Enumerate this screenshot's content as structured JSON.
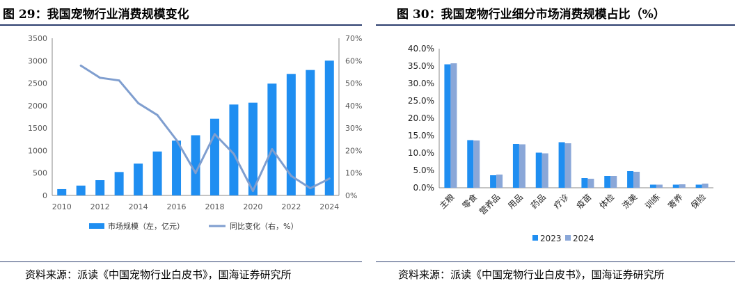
{
  "left": {
    "title": "图 29：我国宠物行业消费规模变化",
    "source": "资料来源：派读《中国宠物行业白皮书》，国海证券研究所",
    "chart_data": {
      "type": "bar",
      "title": "",
      "x": [
        2010,
        2011,
        2012,
        2013,
        2014,
        2015,
        2016,
        2017,
        2018,
        2019,
        2020,
        2021,
        2022,
        2023,
        2024
      ],
      "x_ticks": [
        "2010",
        "2012",
        "2014",
        "2016",
        "2018",
        "2020",
        "2022",
        "2024"
      ],
      "series": [
        {
          "name": "市场规模（左，亿元）",
          "type": "bar",
          "axis": "left",
          "color": "#1f8ef1",
          "values": [
            140,
            219,
            340,
            521,
            708,
            978,
            1220,
            1340,
            1708,
            2024,
            2065,
            2490,
            2706,
            2793,
            3002
          ]
        },
        {
          "name": "同比变化（右，%）",
          "type": "line",
          "axis": "right",
          "color": "#7f9ecf",
          "values": [
            null,
            57.8,
            52.4,
            51.2,
            41.1,
            35.8,
            24.7,
            10.0,
            27.3,
            18.5,
            2.0,
            20.6,
            8.7,
            3.2,
            7.5
          ]
        }
      ],
      "y_left": {
        "min": 0,
        "max": 3500,
        "ticks": [
          "0",
          "500",
          "1000",
          "1500",
          "2000",
          "2500",
          "3000",
          "3500"
        ]
      },
      "y_right": {
        "min": 0,
        "max": 70,
        "ticks": [
          "0%",
          "10%",
          "20%",
          "30%",
          "40%",
          "50%",
          "60%",
          "70%"
        ]
      },
      "legend_position": "bottom",
      "grid": false
    }
  },
  "right": {
    "title": "图 30：我国宠物行业细分市场消费规模占比（%）",
    "source": "资料来源：派读《中国宠物行业白皮书》，国海证券研究所",
    "chart_data": {
      "type": "bar",
      "title": "",
      "categories": [
        "主粮",
        "零食",
        "营养品",
        "用品",
        "药品",
        "疗诊",
        "疫苗",
        "体检",
        "洗美",
        "训练",
        "寄养",
        "保险"
      ],
      "series": [
        {
          "name": "2023",
          "color": "#1f8ef1",
          "values": [
            35.5,
            13.7,
            3.6,
            12.6,
            10.1,
            13.1,
            2.8,
            3.4,
            4.8,
            0.9,
            0.9,
            0.9
          ]
        },
        {
          "name": "2024",
          "color": "#8aa7d8",
          "values": [
            35.8,
            13.6,
            3.8,
            12.5,
            9.9,
            12.8,
            2.6,
            3.4,
            4.6,
            0.9,
            1.0,
            1.2
          ]
        }
      ],
      "y": {
        "min": 0,
        "max": 40,
        "ticks": [
          "0.0%",
          "5.0%",
          "10.0%",
          "15.0%",
          "20.0%",
          "25.0%",
          "30.0%",
          "35.0%",
          "40.0%"
        ]
      },
      "legend_position": "bottom",
      "grid": false
    }
  }
}
